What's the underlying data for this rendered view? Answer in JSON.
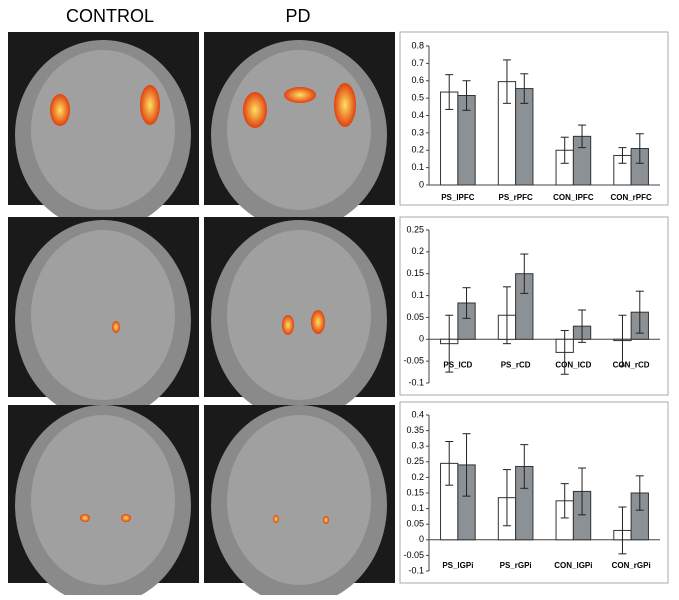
{
  "panel_labels": [
    "CONTROL",
    "PD"
  ],
  "chart_data": [
    {
      "type": "bar",
      "categories": [
        "PS_lPFC",
        "PS_rPFC",
        "CON_lPFC",
        "CON_rPFC"
      ],
      "series": [
        {
          "color": "#ffffff",
          "values": [
            0.535,
            0.595,
            0.2,
            0.17
          ],
          "errors": [
            0.1,
            0.125,
            0.075,
            0.045
          ]
        },
        {
          "color": "#8c9196",
          "values": [
            0.515,
            0.555,
            0.28,
            0.21
          ],
          "errors": [
            0.085,
            0.085,
            0.065,
            0.085
          ]
        }
      ],
      "ylim": [
        0,
        0.8
      ],
      "yticks": [
        0,
        0.1,
        0.2,
        0.3,
        0.4,
        0.5,
        0.6,
        0.7,
        0.8
      ]
    },
    {
      "type": "bar",
      "categories": [
        "PS_lCD",
        "PS_rCD",
        "CON_lCD",
        "CON_rCD"
      ],
      "series": [
        {
          "color": "#ffffff",
          "values": [
            -0.01,
            0.055,
            -0.03,
            -0.003
          ],
          "errors": [
            0.065,
            0.065,
            0.05,
            0.058
          ]
        },
        {
          "color": "#8c9196",
          "values": [
            0.083,
            0.15,
            0.03,
            0.062
          ],
          "errors": [
            0.035,
            0.045,
            0.037,
            0.048
          ]
        }
      ],
      "ylim": [
        -0.1,
        0.25
      ],
      "yticks": [
        -0.1,
        -0.05,
        0,
        0.05,
        0.1,
        0.15,
        0.2,
        0.25
      ]
    },
    {
      "type": "bar",
      "categories": [
        "PS_lGPi",
        "PS_rGPi",
        "CON_lGPi",
        "CON_rGPi"
      ],
      "series": [
        {
          "color": "#ffffff",
          "values": [
            0.245,
            0.135,
            0.125,
            0.03
          ],
          "errors": [
            0.07,
            0.09,
            0.055,
            0.075
          ]
        },
        {
          "color": "#8c9196",
          "values": [
            0.24,
            0.235,
            0.155,
            0.15
          ],
          "errors": [
            0.1,
            0.07,
            0.075,
            0.055
          ]
        }
      ],
      "ylim": [
        -0.1,
        0.4
      ],
      "yticks": [
        -0.1,
        -0.05,
        0,
        0.05,
        0.1,
        0.15,
        0.2,
        0.25,
        0.3,
        0.35,
        0.4
      ]
    }
  ]
}
